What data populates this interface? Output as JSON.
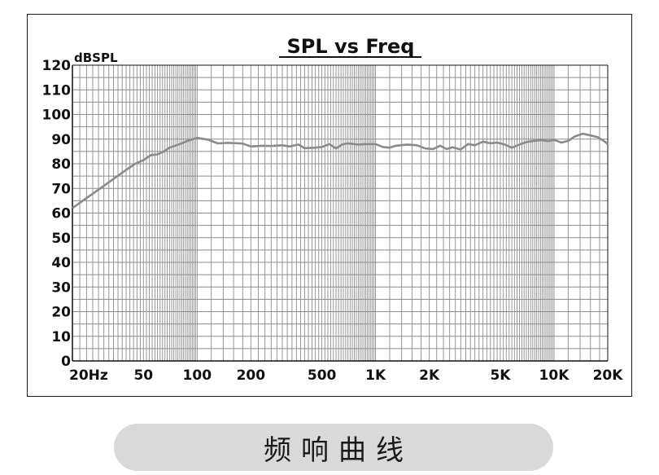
{
  "chart_data": {
    "type": "line",
    "title": "SPL vs Freq",
    "ylabel": "dBSPL",
    "xlabel": "",
    "x_scale": "log",
    "xlim": [
      20,
      20000
    ],
    "ylim": [
      0,
      120
    ],
    "grid": true,
    "y_ticks": [
      0,
      10,
      20,
      30,
      40,
      50,
      60,
      70,
      80,
      90,
      100,
      110,
      120
    ],
    "x_ticks": [
      {
        "value": 20,
        "label": "20Hz"
      },
      {
        "value": 50,
        "label": "50"
      },
      {
        "value": 100,
        "label": "100"
      },
      {
        "value": 200,
        "label": "200"
      },
      {
        "value": 500,
        "label": "500"
      },
      {
        "value": 1000,
        "label": "1K"
      },
      {
        "value": 2000,
        "label": "2K"
      },
      {
        "value": 5000,
        "label": "5K"
      },
      {
        "value": 10000,
        "label": "10K"
      },
      {
        "value": 20000,
        "label": "20K"
      }
    ],
    "line_color": "#8a8a8a",
    "series": [
      {
        "x": [
          20,
          25,
          30,
          35,
          40,
          45,
          50,
          55,
          60,
          65,
          70,
          80,
          90,
          100,
          115,
          130,
          150,
          180,
          200,
          230,
          260,
          300,
          330,
          370,
          400,
          450,
          500,
          550,
          600,
          650,
          700,
          800,
          900,
          1000,
          1100,
          1200,
          1300,
          1500,
          1700,
          1900,
          2100,
          2300,
          2500,
          2700,
          3000,
          3300,
          3600,
          4000,
          4400,
          4800,
          5300,
          5800,
          6400,
          7000,
          7700,
          8500,
          9300,
          10000,
          11000,
          12000,
          13000,
          14500,
          16000,
          17500,
          19000,
          20000
        ],
        "y": [
          62,
          67,
          71,
          74.5,
          77.5,
          80,
          81.5,
          83.5,
          83.8,
          85,
          86.5,
          88,
          89.5,
          90.5,
          89.8,
          88.3,
          88.5,
          88.2,
          87,
          87.3,
          87.2,
          87.5,
          87,
          87.8,
          86.3,
          86.5,
          86.8,
          88,
          86.2,
          87.8,
          88.3,
          87.8,
          88,
          88,
          86.8,
          86.5,
          87.3,
          87.8,
          87.5,
          86.2,
          86,
          87.3,
          86,
          86.7,
          85.8,
          88,
          87.5,
          89,
          88.3,
          88.6,
          87.8,
          86.5,
          87.8,
          88.8,
          89.3,
          89.6,
          89.2,
          89.7,
          88.6,
          89.3,
          91,
          92.2,
          91.5,
          90.8,
          89.3,
          88
        ]
      }
    ]
  },
  "caption": "频响曲线"
}
